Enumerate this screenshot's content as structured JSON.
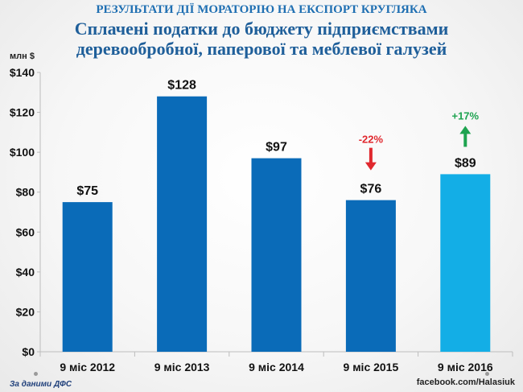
{
  "header": {
    "supertitle": "РЕЗУЛЬТАТИ ДІЇ МОРАТОРІЮ НА ЕКСПОРТ КРУГЛЯКА",
    "title_line1": "Сплачені податки до бюджету підприємствами",
    "title_line2": "деревообробної, паперової та меблевої галузей"
  },
  "footer": {
    "source": "За даними ДФС",
    "credit": "facebook.com/Halasiuk"
  },
  "chart_data": {
    "type": "bar",
    "ylabel": "млн $",
    "ylim": [
      0,
      140
    ],
    "ytick_step": 20,
    "ytick_prefix": "$",
    "grid": false,
    "categories": [
      "9 міс 2012",
      "9 міс 2013",
      "9 міс 2014",
      "9 міс 2015",
      "9 міс 2016"
    ],
    "values": [
      75,
      128,
      97,
      76,
      89
    ],
    "value_labels": [
      "$75",
      "$128",
      "$97",
      "$76",
      "$89"
    ],
    "colors": [
      "#0a6bb8",
      "#0a6bb8",
      "#0a6bb8",
      "#0a6bb8",
      "#13aee6"
    ],
    "annotations": [
      {
        "category_index": 3,
        "text": "-22%",
        "direction": "down",
        "color": "#e0282e"
      },
      {
        "category_index": 4,
        "text": "+17%",
        "direction": "up",
        "color": "#1ea350"
      }
    ]
  }
}
